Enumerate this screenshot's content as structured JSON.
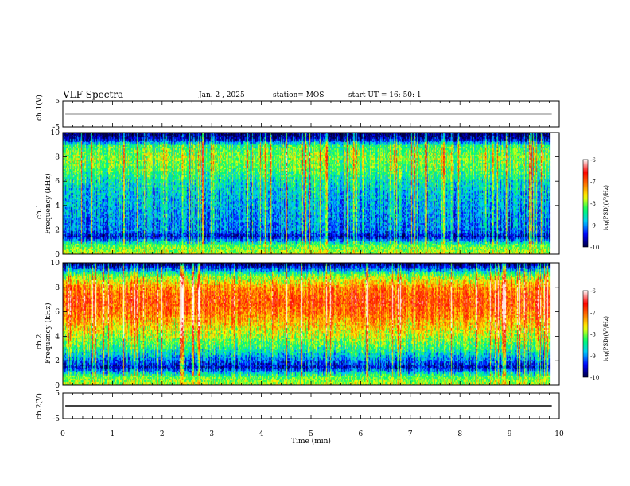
{
  "header": {
    "title": "VLF Spectra",
    "date": "Jan. 2 , 2025",
    "station": "station= MOS",
    "start": "start UT =  16: 50: 1"
  },
  "colors": {
    "scale": [
      "#000040",
      "#0000ff",
      "#00c8ff",
      "#00ff64",
      "#ffff00",
      "#ff7800",
      "#ff0000",
      "#ffffff"
    ]
  },
  "chart_data": [
    {
      "type": "line",
      "ylabel": "ch.1(V)",
      "ylim": [
        -5,
        5
      ],
      "yticks": [
        "5",
        "-5"
      ],
      "xlim": [
        0,
        10
      ],
      "level": 0
    },
    {
      "type": "heatmap",
      "ylabel": "ch.1",
      "ylabel2": "Frequency (kHz)",
      "ylim": [
        0,
        10
      ],
      "yticks": [
        "0",
        "2",
        "4",
        "6",
        "8",
        "10"
      ],
      "xlim": [
        0,
        10
      ],
      "data_end": 9.83,
      "profile": {
        "freq_khz": [
          0,
          0.8,
          1.5,
          2,
          3,
          4,
          5,
          6,
          7,
          8,
          9,
          9.5,
          10
        ],
        "log_psd": [
          -7.8,
          -8.2,
          -9.6,
          -9.1,
          -9.0,
          -8.9,
          -8.8,
          -8.6,
          -8.2,
          -8.0,
          -8.3,
          -9.6,
          -10
        ]
      },
      "colorbar": {
        "label": "log(PSD)(V²/Hz)",
        "range": [
          -10,
          -6
        ],
        "ticks": [
          "-6",
          "-7",
          "-8",
          "-9",
          "-10"
        ]
      }
    },
    {
      "type": "heatmap",
      "ylabel": "ch.2",
      "ylabel2": "Frequency (kHz)",
      "ylim": [
        0,
        10
      ],
      "yticks": [
        "0",
        "2",
        "4",
        "6",
        "8",
        "10"
      ],
      "xlim": [
        0,
        10
      ],
      "data_end": 9.83,
      "profile": {
        "freq_khz": [
          0,
          0.8,
          1.5,
          2,
          3,
          4,
          5,
          6,
          7,
          8,
          9,
          9.5,
          10
        ],
        "log_psd": [
          -7.8,
          -8.2,
          -9.6,
          -9.2,
          -8.4,
          -7.9,
          -7.5,
          -7.1,
          -6.9,
          -7.2,
          -8.0,
          -9.0,
          -10
        ]
      },
      "colorbar": {
        "label": "log(PSD)(V²/Hz)",
        "range": [
          -10,
          -6
        ],
        "ticks": [
          "-6",
          "-7",
          "-8",
          "-9",
          "-10"
        ]
      }
    },
    {
      "type": "line",
      "ylabel": "ch.2(V)",
      "ylim": [
        -5,
        5
      ],
      "yticks": [
        "5",
        "-5"
      ],
      "xlim": [
        0,
        10
      ],
      "level": 0
    }
  ],
  "xaxis": {
    "label": "Time (min)",
    "ticks": [
      "0",
      "1",
      "2",
      "3",
      "4",
      "5",
      "6",
      "7",
      "8",
      "9",
      "10"
    ]
  }
}
